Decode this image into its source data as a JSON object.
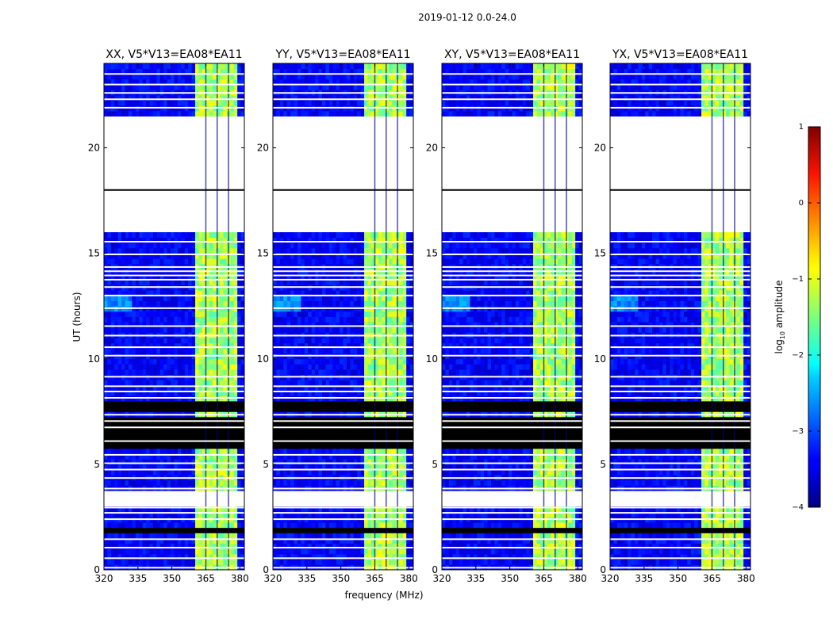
{
  "chart_data": {
    "type": "heatmap",
    "title": "2019-01-12 0.0-24.0",
    "xlabel": "frequency (MHz)",
    "ylabel": "UT (hours)",
    "xlim": [
      320,
      382
    ],
    "ylim": [
      0,
      24
    ],
    "xticks": [
      320,
      335,
      350,
      365,
      380
    ],
    "yticks": [
      0,
      5,
      10,
      15,
      20
    ],
    "colorbar": {
      "label": "log$_{10}$ amplitude",
      "label_main": "log",
      "label_sub": "10",
      "label_rest": " amplitude",
      "min": -4,
      "max": 1,
      "ticks": [
        1,
        0,
        -1,
        -2,
        -3,
        -4
      ],
      "tick_labels": [
        "1",
        "0",
        "−1",
        "−2",
        "−3",
        "−4"
      ],
      "colormap": "jet"
    },
    "panels": [
      {
        "polarization": "XX",
        "title": "XX, V5*V13=EA08*EA11"
      },
      {
        "polarization": "YY",
        "title": "YY, V5*V13=EA08*EA11"
      },
      {
        "polarization": "XY",
        "title": "XY, V5*V13=EA08*EA11"
      },
      {
        "polarization": "YX",
        "title": "YX, V5*V13=EA08*EA11"
      }
    ],
    "bright_band_mhz": [
      360,
      379
    ],
    "bright_band_log_amplitude": -1.3,
    "background_log_amplitude": -3.4,
    "no_data_hours": [
      [
        18.1,
        21.4
      ],
      [
        16.1,
        17.9
      ],
      [
        3.05,
        3.75
      ]
    ],
    "flagged_hours": [
      [
        5.85,
        6.7
      ],
      [
        6.75,
        7.0
      ],
      [
        7.1,
        7.3
      ],
      [
        7.4,
        8.1
      ],
      [
        1.75,
        2.1
      ]
    ],
    "divider_hour": 18.0
  }
}
